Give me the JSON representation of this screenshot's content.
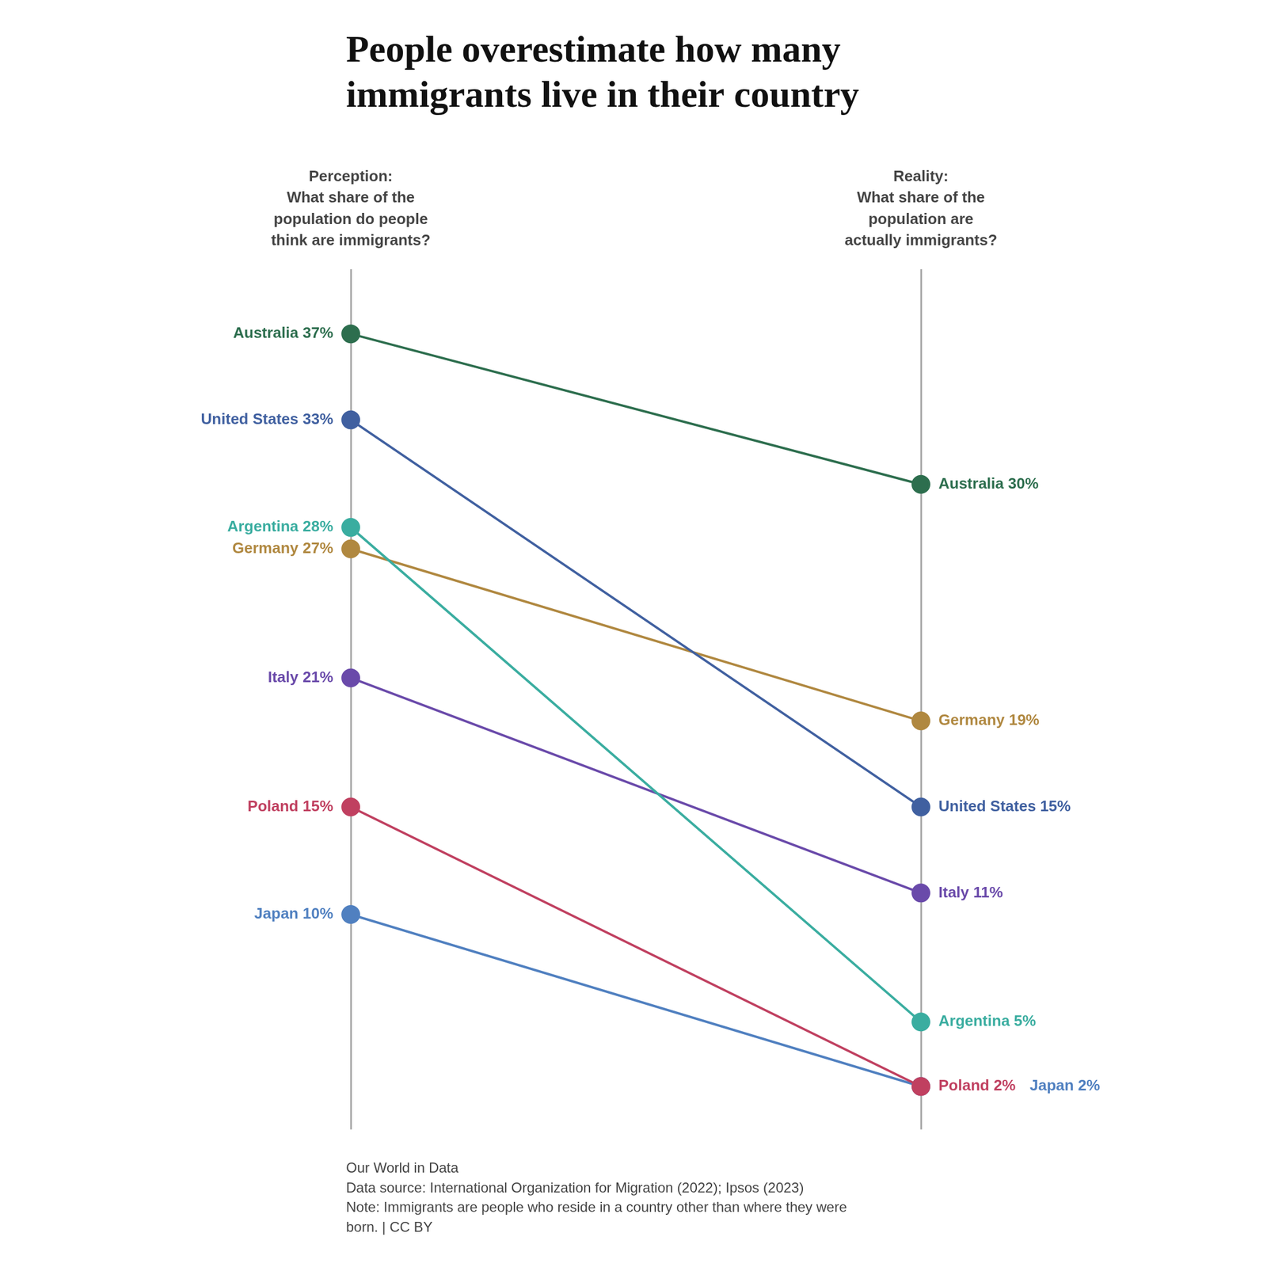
{
  "chart_data": {
    "type": "line",
    "title": [
      "People overestimate how many",
      "immigrants live in their country"
    ],
    "categories": [
      "Perception:",
      "Reality:"
    ],
    "series": [
      {
        "name": "Australia",
        "color": "#2d6e4e",
        "values": [
          37,
          30
        ],
        "value_labels": [
          "Australia 37%",
          "Australia 30%"
        ]
      },
      {
        "name": "United States",
        "color": "#4060a0",
        "values": [
          33,
          15
        ],
        "value_labels": [
          "United States 33%",
          "United States 15%"
        ]
      },
      {
        "name": "Argentina",
        "color": "#3aada0",
        "values": [
          28,
          5
        ],
        "value_labels": [
          "Argentina 28%",
          "Argentina 5%"
        ]
      },
      {
        "name": "Germany",
        "color": "#b08840",
        "values": [
          27,
          19
        ],
        "value_labels": [
          "Germany 27%",
          "Germany 19%"
        ]
      },
      {
        "name": "Italy",
        "color": "#6a4aaa",
        "values": [
          21,
          11
        ],
        "value_labels": [
          "Italy 21%",
          "Italy 11%"
        ]
      },
      {
        "name": "Poland",
        "color": "#c04060",
        "values": [
          15,
          2
        ],
        "value_labels": [
          "Poland 15%",
          "Poland 2%"
        ]
      },
      {
        "name": "Japan",
        "color": "#5080c0",
        "values": [
          10,
          2
        ],
        "value_labels": [
          "Japan 10%",
          "Japan 2%"
        ]
      }
    ],
    "ylim": [
      0,
      40
    ],
    "tick_labels": "x",
    "grid": true,
    "data_labels": true,
    "marker": "circle",
    "annotations": [
      "What share of the\npopulation do people\nthink are immigrants?",
      "What share of the\npopulation are\nactually immigrants?",
      "Our World in Data",
      "Data source: International Organization for Migration (2022); Ipsos (2023)",
      "Note: Immigrants are people who reside in a country other than where they were\nborn. | CC BY"
    ]
  }
}
